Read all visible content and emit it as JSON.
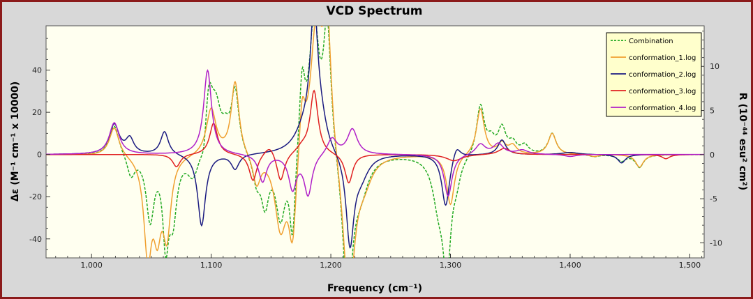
{
  "chart_data": {
    "type": "line",
    "title": "VCD Spectrum",
    "xlabel": "Frequency (cm⁻¹)",
    "ylabel_left": "Δε (M⁻¹ cm⁻¹ x 10000)",
    "ylabel_right": "R (10⁻⁴⁴ esu² cm²)",
    "xlim": [
      962,
      1512
    ],
    "ylim_left": [
      -49,
      61
    ],
    "ylim_right": [
      -11.7,
      14.6
    ],
    "x_ticks": [
      1000,
      1100,
      1200,
      1300,
      1400,
      1500
    ],
    "x_tick_labels": [
      "1,000",
      "1,100",
      "1,200",
      "1,300",
      "1,400",
      "1,500"
    ],
    "y_ticks_left": [
      -40,
      -20,
      0,
      20,
      40
    ],
    "y_ticks_right": [
      -10,
      -5,
      0,
      5,
      10
    ],
    "grid": false,
    "legend_position": "top-right",
    "series": [
      {
        "name": "Combination",
        "color": "#22aa22",
        "dashed": true,
        "width": 1.5,
        "peaks": [
          [
            1019,
            15,
            5
          ],
          [
            1033,
            -10,
            4
          ],
          [
            1049,
            -30,
            4
          ],
          [
            1062,
            -38,
            3
          ],
          [
            1068,
            -28,
            4
          ],
          [
            1085,
            -12,
            6
          ],
          [
            1094,
            -10,
            3
          ],
          [
            1098,
            30,
            4
          ],
          [
            1104,
            20,
            5
          ],
          [
            1112,
            8,
            4
          ],
          [
            1120,
            30,
            4
          ],
          [
            1138,
            -12,
            4
          ],
          [
            1145,
            -22,
            4
          ],
          [
            1158,
            -30,
            5
          ],
          [
            1168,
            -40,
            3
          ],
          [
            1176,
            35,
            3
          ],
          [
            1186,
            62,
            5
          ],
          [
            1197,
            62,
            4
          ],
          [
            1214,
            -70,
            5
          ],
          [
            1225,
            -15,
            8
          ],
          [
            1290,
            -20,
            6
          ],
          [
            1297,
            -50,
            4
          ],
          [
            1305,
            -8,
            4
          ],
          [
            1325,
            24,
            4
          ],
          [
            1334,
            6,
            4
          ],
          [
            1343,
            12,
            4
          ],
          [
            1352,
            5,
            4
          ],
          [
            1362,
            4,
            4
          ],
          [
            1385,
            10,
            4
          ],
          [
            1420,
            -1,
            5
          ],
          [
            1443,
            -3,
            4
          ],
          [
            1458,
            -6,
            4
          ]
        ]
      },
      {
        "name": "conformation_1.log",
        "color": "#f0a030",
        "dashed": false,
        "width": 1.5,
        "peaks": [
          [
            1019,
            14,
            5
          ],
          [
            1047,
            -45,
            4
          ],
          [
            1055,
            -30,
            4
          ],
          [
            1063,
            -35,
            4
          ],
          [
            1100,
            22,
            5
          ],
          [
            1120,
            35,
            4
          ],
          [
            1138,
            -14,
            4
          ],
          [
            1158,
            -35,
            6
          ],
          [
            1168,
            -40,
            4
          ],
          [
            1176,
            25,
            3
          ],
          [
            1188,
            62,
            6
          ],
          [
            1197,
            62,
            4
          ],
          [
            1215,
            -70,
            6
          ],
          [
            1228,
            -10,
            8
          ],
          [
            1300,
            -24,
            4
          ],
          [
            1325,
            22,
            4
          ],
          [
            1343,
            5,
            4
          ],
          [
            1352,
            4,
            4
          ],
          [
            1385,
            10,
            4
          ],
          [
            1420,
            -1,
            5
          ],
          [
            1458,
            -6,
            4
          ]
        ]
      },
      {
        "name": "conformation_2.log",
        "color": "#1a1a80",
        "dashed": false,
        "width": 1.5,
        "peaks": [
          [
            1019,
            14,
            5
          ],
          [
            1032,
            7,
            4
          ],
          [
            1061,
            11,
            4
          ],
          [
            1092,
            -34,
            4
          ],
          [
            1120,
            -7,
            4
          ],
          [
            1178,
            10,
            10
          ],
          [
            1186,
            62,
            4
          ],
          [
            1192,
            10,
            6
          ],
          [
            1216,
            -42,
            4
          ],
          [
            1225,
            -10,
            8
          ],
          [
            1296,
            -25,
            4
          ],
          [
            1305,
            6,
            4
          ],
          [
            1343,
            7,
            4
          ],
          [
            1400,
            1,
            8
          ],
          [
            1443,
            -4,
            4
          ]
        ]
      },
      {
        "name": "conformation_3.log",
        "color": "#e02020",
        "dashed": false,
        "width": 1.5,
        "peaks": [
          [
            1071,
            -6,
            4
          ],
          [
            1102,
            15,
            4
          ],
          [
            1135,
            -13,
            4
          ],
          [
            1149,
            5,
            6
          ],
          [
            1158,
            -14,
            4
          ],
          [
            1176,
            3,
            6
          ],
          [
            1186,
            30,
            4
          ],
          [
            1215,
            -14,
            4
          ],
          [
            1303,
            -3,
            8
          ],
          [
            1345,
            3,
            6
          ],
          [
            1480,
            -2,
            4
          ]
        ]
      },
      {
        "name": "conformation_4.log",
        "color": "#b020c8",
        "dashed": false,
        "width": 1.5,
        "peaks": [
          [
            1019,
            15,
            5
          ],
          [
            1097,
            40,
            4
          ],
          [
            1143,
            -13,
            4
          ],
          [
            1168,
            -16,
            4
          ],
          [
            1181,
            -19,
            4
          ],
          [
            1201,
            8,
            5
          ],
          [
            1218,
            12,
            5
          ],
          [
            1298,
            -20,
            4
          ],
          [
            1325,
            5,
            5
          ],
          [
            1340,
            5,
            5
          ],
          [
            1360,
            2,
            6
          ],
          [
            1400,
            -1,
            6
          ]
        ]
      }
    ]
  }
}
